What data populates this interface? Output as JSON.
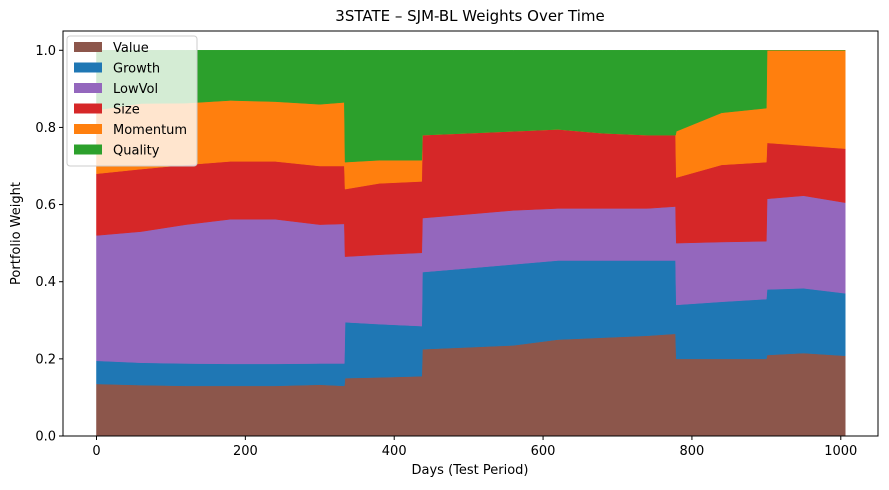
{
  "chart_data": {
    "type": "area",
    "stacked": true,
    "title": "3STATE – SJM-BL Weights Over Time",
    "xlabel": "Days (Test Period)",
    "ylabel": "Portfolio Weight",
    "xlim": [
      -45,
      1050
    ],
    "ylim": [
      0,
      1.05
    ],
    "xticks": [
      0,
      200,
      400,
      600,
      800,
      1000
    ],
    "yticks": [
      0.0,
      0.2,
      0.4,
      0.6,
      0.8,
      1.0
    ],
    "ytick_labels": [
      "0.0",
      "0.2",
      "0.4",
      "0.6",
      "0.8",
      "1.0"
    ],
    "grid": false,
    "legend_position": "upper-left",
    "x": [
      0,
      60,
      120,
      180,
      240,
      300,
      333,
      334,
      380,
      437,
      438,
      500,
      560,
      620,
      680,
      740,
      778,
      779,
      840,
      900,
      901,
      950,
      1006
    ],
    "series": [
      {
        "name": "Value",
        "color": "#8c564b",
        "values": [
          0.135,
          0.132,
          0.13,
          0.13,
          0.13,
          0.133,
          0.13,
          0.15,
          0.152,
          0.155,
          0.225,
          0.23,
          0.235,
          0.25,
          0.255,
          0.26,
          0.265,
          0.2,
          0.2,
          0.2,
          0.21,
          0.215,
          0.208
        ]
      },
      {
        "name": "Growth",
        "color": "#1f77b4",
        "values": [
          0.06,
          0.058,
          0.058,
          0.057,
          0.057,
          0.055,
          0.058,
          0.145,
          0.138,
          0.13,
          0.2,
          0.205,
          0.21,
          0.205,
          0.2,
          0.195,
          0.19,
          0.14,
          0.148,
          0.155,
          0.17,
          0.168,
          0.162
        ]
      },
      {
        "name": "LowVol",
        "color": "#9467bd",
        "values": [
          0.325,
          0.34,
          0.36,
          0.375,
          0.375,
          0.36,
          0.362,
          0.17,
          0.18,
          0.19,
          0.14,
          0.14,
          0.14,
          0.135,
          0.135,
          0.135,
          0.14,
          0.16,
          0.155,
          0.15,
          0.235,
          0.24,
          0.235
        ]
      },
      {
        "name": "Size",
        "color": "#d62728",
        "values": [
          0.16,
          0.162,
          0.155,
          0.15,
          0.15,
          0.152,
          0.15,
          0.175,
          0.185,
          0.185,
          0.215,
          0.21,
          0.205,
          0.205,
          0.195,
          0.19,
          0.185,
          0.17,
          0.2,
          0.205,
          0.145,
          0.13,
          0.14
        ]
      },
      {
        "name": "Momentum",
        "color": "#ff7f0e",
        "values": [
          0.165,
          0.17,
          0.16,
          0.158,
          0.155,
          0.16,
          0.165,
          0.07,
          0.06,
          0.055,
          0.0,
          0.0,
          0.0,
          0.0,
          0.0,
          0.0,
          0.0,
          0.12,
          0.135,
          0.14,
          0.24,
          0.247,
          0.255
        ]
      },
      {
        "name": "Quality",
        "color": "#2ca02c",
        "values": [
          0.155,
          0.138,
          0.137,
          0.13,
          0.133,
          0.14,
          0.135,
          0.29,
          0.285,
          0.285,
          0.22,
          0.215,
          0.21,
          0.205,
          0.215,
          0.22,
          0.22,
          0.21,
          0.162,
          0.15,
          0.0,
          0.0,
          0.0
        ]
      }
    ]
  }
}
